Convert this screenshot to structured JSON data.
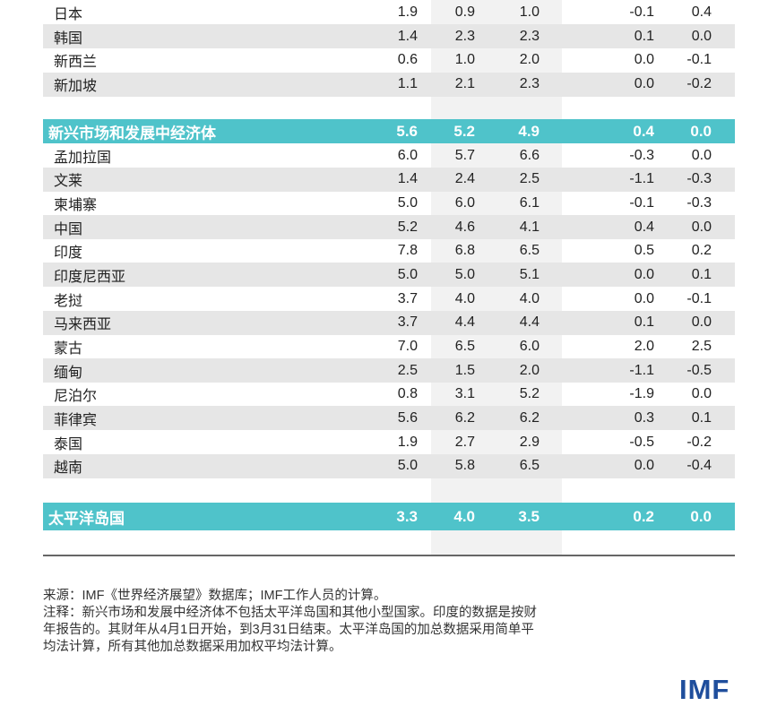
{
  "table": {
    "top_rows": [
      [
        "日本",
        "1.9",
        "0.9",
        "1.0",
        "-0.1",
        "0.4"
      ],
      [
        "韩国",
        "1.4",
        "2.3",
        "2.3",
        "0.1",
        "0.0"
      ],
      [
        "新西兰",
        "0.6",
        "1.0",
        "2.0",
        "0.0",
        "-0.1"
      ],
      [
        "新加坡",
        "1.1",
        "2.1",
        "2.3",
        "0.0",
        "-0.2"
      ]
    ],
    "emde": [
      "新兴市场和发展中经济体",
      "5.6",
      "5.2",
      "4.9",
      "0.4",
      "0.0"
    ],
    "emde_rows": [
      [
        "孟加拉国",
        "6.0",
        "5.7",
        "6.6",
        "-0.3",
        "0.0"
      ],
      [
        "文莱",
        "1.4",
        "2.4",
        "2.5",
        "-1.1",
        "-0.3"
      ],
      [
        "柬埔寨",
        "5.0",
        "6.0",
        "6.1",
        "-0.1",
        "-0.3"
      ],
      [
        "中国",
        "5.2",
        "4.6",
        "4.1",
        "0.4",
        "0.0"
      ],
      [
        "印度",
        "7.8",
        "6.8",
        "6.5",
        "0.5",
        "0.2"
      ],
      [
        "印度尼西亚",
        "5.0",
        "5.0",
        "5.1",
        "0.0",
        "0.1"
      ],
      [
        "老挝",
        "3.7",
        "4.0",
        "4.0",
        "0.0",
        "-0.1"
      ],
      [
        "马来西亚",
        "3.7",
        "4.4",
        "4.4",
        "0.1",
        "0.0"
      ],
      [
        "蒙古",
        "7.0",
        "6.5",
        "6.0",
        "2.0",
        "2.5"
      ],
      [
        "缅甸",
        "2.5",
        "1.5",
        "2.0",
        "-1.1",
        "-0.5"
      ],
      [
        "尼泊尔",
        "0.8",
        "3.1",
        "5.2",
        "-1.9",
        "0.0"
      ],
      [
        "菲律宾",
        "5.6",
        "6.2",
        "6.2",
        "0.3",
        "0.1"
      ],
      [
        "泰国",
        "1.9",
        "2.7",
        "2.9",
        "-0.5",
        "-0.2"
      ],
      [
        "越南",
        "5.0",
        "5.8",
        "6.5",
        "0.0",
        "-0.4"
      ]
    ],
    "pacific": [
      "太平洋岛国",
      "3.3",
      "4.0",
      "3.5",
      "0.2",
      "0.0"
    ]
  },
  "notes": [
    "来源：IMF《世界经济展望》数据库；IMF工作人员的计算。",
    "注释：新兴市场和发展中经济体不包括太平洋岛国和其他小型国家。印度的数据是按财",
    "年报告的。其财年从4月1日开始，到3月31日结束。太平洋岛国的加总数据采用简单平",
    "均法计算，所有其他加总数据采用加权平均法计算。"
  ],
  "logo": "IMF"
}
